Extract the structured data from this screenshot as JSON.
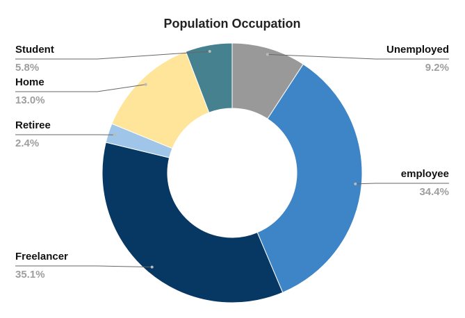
{
  "chart_data": {
    "type": "donut",
    "title": "Population Occupation",
    "categories": [
      "Unemployed",
      "employee",
      "Freelancer",
      "Retiree",
      "Home",
      "Student"
    ],
    "values": [
      9.2,
      34.4,
      35.1,
      2.4,
      13.0,
      5.8
    ],
    "value_labels": [
      "9.2%",
      "34.4%",
      "35.1%",
      "2.4%",
      "13.0%",
      "5.8%"
    ],
    "colors": [
      "#999999",
      "#3d85c6",
      "#073763",
      "#9fc5e8",
      "#ffe599",
      "#45818e"
    ]
  }
}
